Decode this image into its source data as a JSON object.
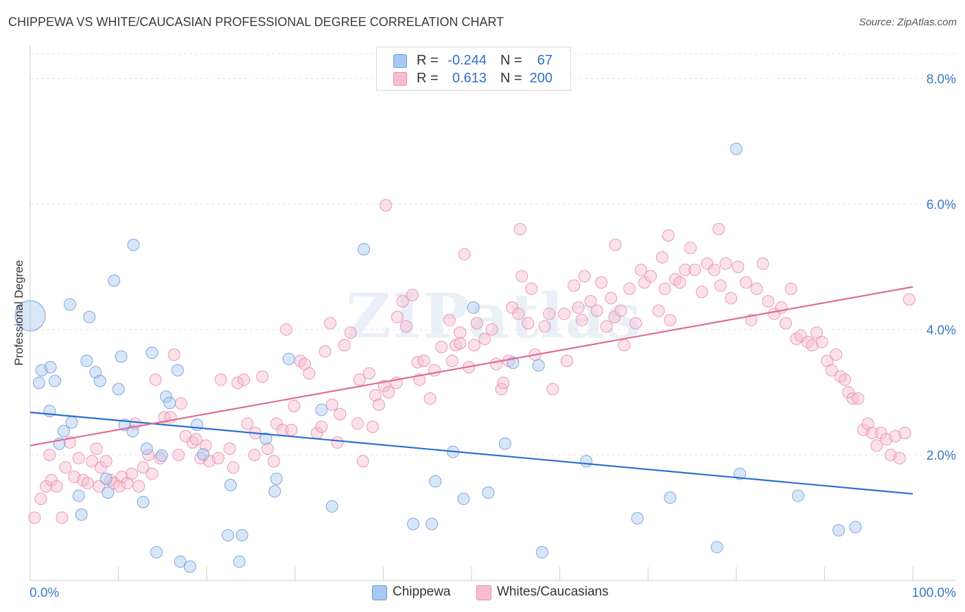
{
  "title": "CHIPPEWA VS WHITE/CAUCASIAN PROFESSIONAL DEGREE CORRELATION CHART",
  "source": "Source: ZipAtlas.com",
  "watermark": "ZIPatlas",
  "legend_top": {
    "rows": [
      {
        "r_label": "R =",
        "r_value": "-0.244",
        "n_label": "N =",
        "n_value": "67",
        "color": "#a9c8f0",
        "border": "#6a9ad8"
      },
      {
        "r_label": "R =",
        "r_value": "0.613",
        "n_label": "N =",
        "n_value": "200",
        "color": "#f7bcd0",
        "border": "#e88aa8"
      }
    ]
  },
  "legend_bottom": [
    {
      "label": "Chippewa",
      "color": "#a9c8f0",
      "border": "#6a9ad8"
    },
    {
      "label": "Whites/Caucasians",
      "color": "#f7bcd0",
      "border": "#e88aa8"
    }
  ],
  "chart_data": {
    "type": "scatter",
    "title": "CHIPPEWA VS WHITE/CAUCASIAN PROFESSIONAL DEGREE CORRELATION CHART",
    "xlabel": "",
    "ylabel": "Professional Degree",
    "xlim": [
      0,
      100
    ],
    "ylim": [
      0,
      8.4
    ],
    "x_tick_labels": [
      {
        "value": 0,
        "label": "0.0%"
      },
      {
        "value": 100,
        "label": "100.0%"
      }
    ],
    "y_tick_labels": [
      {
        "value": 2,
        "label": "2.0%"
      },
      {
        "value": 4,
        "label": "4.0%"
      },
      {
        "value": 6,
        "label": "6.0%"
      },
      {
        "value": 8,
        "label": "8.0%"
      }
    ],
    "grid": true,
    "legend_position": "top-center",
    "series": [
      {
        "name": "Chippewa",
        "color": "#6a9ad8",
        "fill": "#a9c8f0",
        "trend": {
          "x": [
            0,
            100
          ],
          "y": [
            2.68,
            1.38
          ]
        },
        "points": [
          [
            0,
            4.22,
            "big"
          ],
          [
            1,
            3.15
          ],
          [
            1.3,
            3.35
          ],
          [
            2.2,
            2.7
          ],
          [
            2.3,
            3.4
          ],
          [
            2.8,
            3.18
          ],
          [
            3.3,
            2.18
          ],
          [
            3.8,
            2.38
          ],
          [
            4.5,
            4.4
          ],
          [
            4.7,
            2.52
          ],
          [
            5.5,
            1.35
          ],
          [
            5.8,
            1.05
          ],
          [
            6.4,
            3.5
          ],
          [
            6.7,
            4.2
          ],
          [
            7.4,
            3.32
          ],
          [
            7.9,
            3.18
          ],
          [
            8.6,
            1.62
          ],
          [
            8.8,
            1.4
          ],
          [
            9.5,
            4.78
          ],
          [
            10,
            3.05
          ],
          [
            10.3,
            3.57
          ],
          [
            10.7,
            2.48
          ],
          [
            11.6,
            2.38
          ],
          [
            11.7,
            5.35
          ],
          [
            12.8,
            1.25
          ],
          [
            13.2,
            2.1
          ],
          [
            13.8,
            3.63
          ],
          [
            14.3,
            0.45
          ],
          [
            14.9,
            1.99
          ],
          [
            15.4,
            2.93
          ],
          [
            15.8,
            2.83
          ],
          [
            16.7,
            3.35
          ],
          [
            17,
            0.3
          ],
          [
            18.1,
            0.22
          ],
          [
            18.9,
            2.48
          ],
          [
            19.6,
            2.01
          ],
          [
            22.4,
            0.72
          ],
          [
            22.7,
            1.52
          ],
          [
            24,
            0.72
          ],
          [
            23.7,
            0.3
          ],
          [
            26.7,
            2.26
          ],
          [
            27.9,
            1.62
          ],
          [
            27.7,
            1.42
          ],
          [
            29.3,
            3.53
          ],
          [
            33,
            2.72
          ],
          [
            34.2,
            1.18
          ],
          [
            37.8,
            5.28
          ],
          [
            43.4,
            0.9
          ],
          [
            45.5,
            0.9
          ],
          [
            45.9,
            1.58
          ],
          [
            47.9,
            2.05
          ],
          [
            49.1,
            1.3
          ],
          [
            50.2,
            4.35
          ],
          [
            51.9,
            1.4
          ],
          [
            53.8,
            2.18
          ],
          [
            54.7,
            3.47
          ],
          [
            57.6,
            3.43
          ],
          [
            58,
            0.45
          ],
          [
            63,
            1.9
          ],
          [
            68.8,
            0.99
          ],
          [
            72.5,
            1.32
          ],
          [
            77.8,
            0.53
          ],
          [
            80,
            6.88
          ],
          [
            80.4,
            1.7
          ],
          [
            87,
            1.35
          ],
          [
            91.6,
            0.8
          ],
          [
            93.5,
            0.85
          ]
        ]
      },
      {
        "name": "Whites/Caucasians",
        "color": "#e88aa8",
        "fill": "#f7bcd0",
        "trend": {
          "x": [
            0,
            100
          ],
          "y": [
            2.15,
            4.68
          ]
        },
        "points": [
          [
            0.5,
            1
          ],
          [
            1.2,
            1.3
          ],
          [
            1.8,
            1.5
          ],
          [
            2.2,
            2
          ],
          [
            2.4,
            1.6
          ],
          [
            3,
            1.5
          ],
          [
            3.6,
            1
          ],
          [
            4,
            1.8
          ],
          [
            4.5,
            2.2
          ],
          [
            5,
            1.65
          ],
          [
            5.5,
            1.95
          ],
          [
            6,
            1.6
          ],
          [
            6.5,
            1.55
          ],
          [
            7,
            1.9
          ],
          [
            7.5,
            2.1
          ],
          [
            7.8,
            1.5
          ],
          [
            8,
            1.8
          ],
          [
            8.6,
            1.9
          ],
          [
            9.1,
            1.6
          ],
          [
            9.5,
            1.55
          ],
          [
            10.1,
            1.5
          ],
          [
            10.4,
            1.65
          ],
          [
            11,
            1.55
          ],
          [
            11.5,
            1.7
          ],
          [
            11.9,
            2.5
          ],
          [
            12.3,
            1.5
          ],
          [
            12.8,
            1.8
          ],
          [
            13.4,
            2
          ],
          [
            13.8,
            1.7
          ],
          [
            14.2,
            3.2
          ],
          [
            14.7,
            1.95
          ],
          [
            15.2,
            2.6
          ],
          [
            15.9,
            2.6
          ],
          [
            16.3,
            3.6
          ],
          [
            16.8,
            2
          ],
          [
            17.1,
            2.82
          ],
          [
            17.6,
            2.3
          ],
          [
            18.4,
            2.2
          ],
          [
            18.8,
            2.25
          ],
          [
            19.3,
            1.95
          ],
          [
            19.9,
            2.15
          ],
          [
            20.3,
            1.9
          ],
          [
            21.3,
            1.95
          ],
          [
            21.6,
            3.2
          ],
          [
            22.6,
            2.1
          ],
          [
            23,
            1.8
          ],
          [
            23.5,
            3.15
          ],
          [
            24.2,
            3.2
          ],
          [
            24.6,
            2.5
          ],
          [
            25.4,
            2
          ],
          [
            25.5,
            2.35
          ],
          [
            26.3,
            3.25
          ],
          [
            26.9,
            2.1
          ],
          [
            27.6,
            1.9
          ],
          [
            27.9,
            2.5
          ],
          [
            28.6,
            2.4
          ],
          [
            29.6,
            2.4
          ],
          [
            29,
            4
          ],
          [
            29.9,
            2.78
          ],
          [
            30.6,
            3.5
          ],
          [
            31.1,
            3.45
          ],
          [
            31.6,
            3.3
          ],
          [
            32.5,
            2.35
          ],
          [
            33,
            2.45
          ],
          [
            33.4,
            3.65
          ],
          [
            34,
            4.1
          ],
          [
            34.2,
            2.8
          ],
          [
            34.8,
            2.2
          ],
          [
            35.1,
            2.65
          ],
          [
            35.6,
            3.75
          ],
          [
            36.3,
            3.95
          ],
          [
            37.1,
            2.5
          ],
          [
            37.3,
            3.2
          ],
          [
            37.7,
            1.9
          ],
          [
            38.4,
            3.3
          ],
          [
            38.8,
            2.45
          ],
          [
            39.1,
            2.95
          ],
          [
            39.5,
            2.8
          ],
          [
            40.1,
            3.1
          ],
          [
            40.6,
            3
          ],
          [
            41.5,
            3.15
          ],
          [
            41.6,
            4.2
          ],
          [
            42.2,
            4.45
          ],
          [
            42.6,
            4.05
          ],
          [
            43.3,
            4.55
          ],
          [
            43.9,
            3.48
          ],
          [
            44.1,
            3.2
          ],
          [
            44.6,
            3.5
          ],
          [
            45.3,
            2.9
          ],
          [
            45.8,
            3.35
          ],
          [
            46.6,
            3.72
          ],
          [
            47.5,
            4.15
          ],
          [
            47.8,
            3.5
          ],
          [
            48.2,
            3.75
          ],
          [
            48.7,
            3.95
          ],
          [
            49.2,
            5.2
          ],
          [
            49.7,
            3.4
          ],
          [
            50.3,
            3.75
          ],
          [
            50.6,
            4.1
          ],
          [
            51.5,
            3.85
          ],
          [
            52.3,
            4
          ],
          [
            52.8,
            3.45
          ],
          [
            53.4,
            3.05
          ],
          [
            53.6,
            3.15
          ],
          [
            54.2,
            3.5
          ],
          [
            54.6,
            4.35
          ],
          [
            55.3,
            4.25
          ],
          [
            55.7,
            4.85
          ],
          [
            56.4,
            4.1
          ],
          [
            56.8,
            4.65
          ],
          [
            57.2,
            3.6
          ],
          [
            58.3,
            4.05
          ],
          [
            58.8,
            4.25
          ],
          [
            59.2,
            3.05
          ],
          [
            60.5,
            4.25
          ],
          [
            60.8,
            3.5
          ],
          [
            61.6,
            4.7
          ],
          [
            62.1,
            4.35
          ],
          [
            62.5,
            4.15
          ],
          [
            62.8,
            4.85
          ],
          [
            63.5,
            4.45
          ],
          [
            64.2,
            4.3
          ],
          [
            64.7,
            4.75
          ],
          [
            65.3,
            4.05
          ],
          [
            65.8,
            4.5
          ],
          [
            66.2,
            4.2
          ],
          [
            66.9,
            4.3
          ],
          [
            67.3,
            3.75
          ],
          [
            67.9,
            4.65
          ],
          [
            68.6,
            4.1
          ],
          [
            69.2,
            4.95
          ],
          [
            69.6,
            4.75
          ],
          [
            70.3,
            4.85
          ],
          [
            71.2,
            4.3
          ],
          [
            71.6,
            5.15
          ],
          [
            71.9,
            4.65
          ],
          [
            72.5,
            4.15
          ],
          [
            73.1,
            4.8
          ],
          [
            73.6,
            4.75
          ],
          [
            74.2,
            4.95
          ],
          [
            74.8,
            5.3
          ],
          [
            75.3,
            4.95
          ],
          [
            76.1,
            4.6
          ],
          [
            76.7,
            5.05
          ],
          [
            77.5,
            4.95
          ],
          [
            78.2,
            4.7
          ],
          [
            78.8,
            5.05
          ],
          [
            79.4,
            4.5
          ],
          [
            80.2,
            5
          ],
          [
            81.1,
            4.75
          ],
          [
            81.7,
            4.15
          ],
          [
            82.3,
            4.65
          ],
          [
            83,
            5.05
          ],
          [
            83.6,
            4.45
          ],
          [
            84.3,
            4.25
          ],
          [
            85.1,
            4.35
          ],
          [
            85.6,
            4.1
          ],
          [
            86.2,
            4.65
          ],
          [
            86.8,
            3.85
          ],
          [
            87.3,
            3.9
          ],
          [
            88.1,
            3.8
          ],
          [
            88.6,
            3.75
          ],
          [
            89.1,
            3.95
          ],
          [
            89.7,
            3.8
          ],
          [
            90.3,
            3.5
          ],
          [
            90.8,
            3.35
          ],
          [
            91.3,
            3.6
          ],
          [
            91.8,
            3.25
          ],
          [
            92.3,
            3.2
          ],
          [
            92.7,
            3
          ],
          [
            93.2,
            2.9
          ],
          [
            93.8,
            2.9
          ],
          [
            94.4,
            2.4
          ],
          [
            94.9,
            2.5
          ],
          [
            95.4,
            2.35
          ],
          [
            95.9,
            2.15
          ],
          [
            96.4,
            2.35
          ],
          [
            97,
            2.25
          ],
          [
            97.5,
            2
          ],
          [
            98,
            2.3
          ],
          [
            98.5,
            1.95
          ],
          [
            99.1,
            2.35
          ],
          [
            99.6,
            4.48
          ],
          [
            48.7,
            3.78
          ],
          [
            40.3,
            5.98
          ],
          [
            55.5,
            5.6
          ],
          [
            72.3,
            5.5
          ],
          [
            78,
            5.6
          ],
          [
            66.3,
            5.35
          ]
        ]
      }
    ]
  }
}
